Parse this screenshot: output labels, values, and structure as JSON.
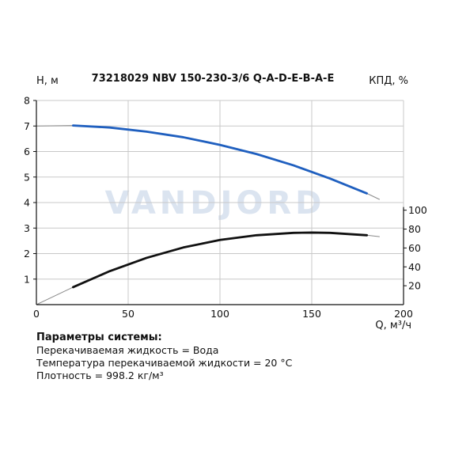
{
  "chart_data": {
    "type": "line",
    "title": "73218029 NBV 150-230-3/6 Q-A-D-E-B-A-E",
    "xlabel": "Q, м³/ч",
    "ylabel_left": "H, м",
    "ylabel_right": "КПД, %",
    "xlim": [
      0,
      200
    ],
    "ylim_left": [
      0,
      8
    ],
    "ylim_right": [
      0,
      100
    ],
    "x_ticks": [
      "0",
      "50",
      "100",
      "150",
      "200"
    ],
    "y_left_ticks": [
      "1",
      "2",
      "3",
      "4",
      "5",
      "6",
      "7",
      "8"
    ],
    "y_right_ticks": [
      "20",
      "40",
      "60",
      "80",
      "100"
    ],
    "grid": true,
    "watermark": "VANDJORD",
    "series": [
      {
        "axis": "left",
        "color": "#1f5fbf",
        "x": [
          0,
          20,
          40,
          60,
          80,
          100,
          120,
          140,
          160,
          180,
          187
        ],
        "y": [
          7.0,
          7.02,
          6.94,
          6.78,
          6.56,
          6.26,
          5.9,
          5.46,
          4.94,
          4.36,
          4.12
        ],
        "operating_range": [
          20,
          180
        ]
      },
      {
        "axis": "right",
        "color": "#111111",
        "x": [
          0,
          20,
          40,
          60,
          80,
          100,
          120,
          140,
          150,
          160,
          180,
          187
        ],
        "y": [
          0,
          18.5,
          35.5,
          49.5,
          60.5,
          68.5,
          73.5,
          76.0,
          76.3,
          76.0,
          73.5,
          72.0
        ],
        "operating_range": [
          20,
          180
        ]
      }
    ]
  },
  "params": {
    "heading": "Параметры системы:",
    "lines": [
      "Перекачиваемая жидкость = Вода",
      "Температура перекачиваемой жидкости = 20 °C",
      "Плотность = 998.2 кг/м³"
    ]
  }
}
